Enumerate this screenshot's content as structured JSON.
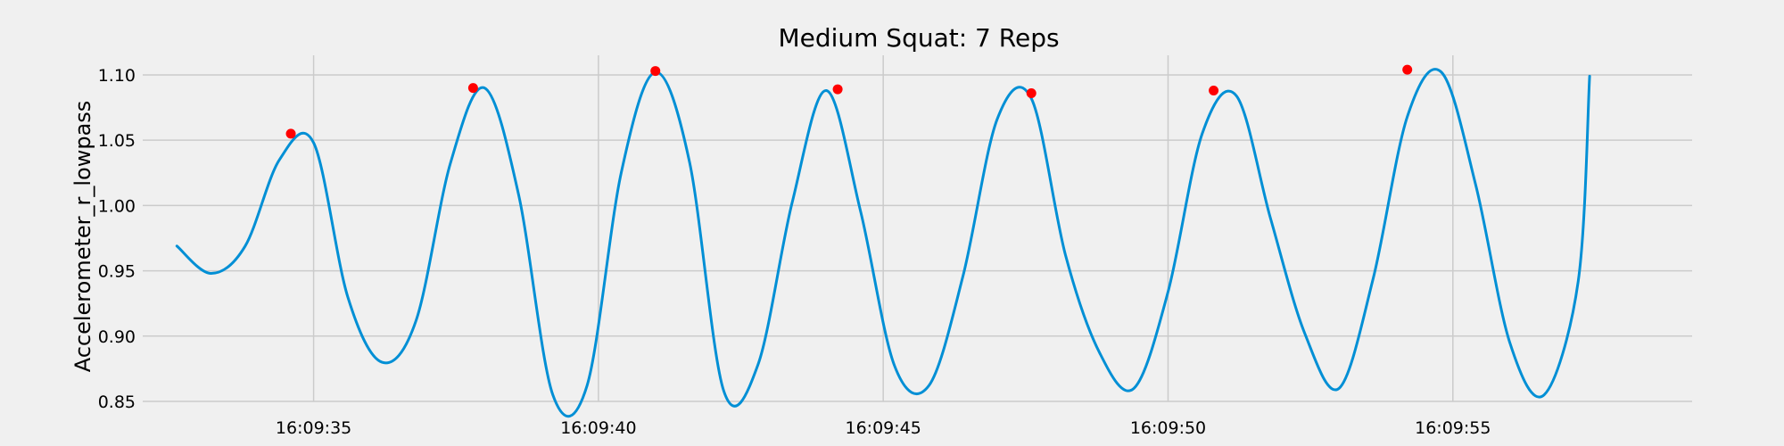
{
  "chart_data": {
    "type": "line",
    "title": "Medium Squat: 7 Reps",
    "xlabel": "",
    "ylabel": "Accelerometer_r_lowpass",
    "xlim": [
      "16:09:32.0",
      "16:09:59.2"
    ],
    "ylim": [
      0.85,
      1.115
    ],
    "grid": true,
    "xticks": [
      "16:09:35",
      "16:09:40",
      "16:09:45",
      "16:09:50",
      "16:09:55"
    ],
    "yticks": [
      "0.85",
      "0.90",
      "0.95",
      "1.00",
      "1.05",
      "1.10"
    ],
    "series": [
      {
        "color": "#008fd5",
        "x": [
          "16:09:32.6",
          "16:09:33.2",
          "16:09:33.8",
          "16:09:34.4",
          "16:09:35.0",
          "16:09:35.6",
          "16:09:36.2",
          "16:09:36.8",
          "16:09:37.4",
          "16:09:38.0",
          "16:09:38.6",
          "16:09:39.2",
          "16:09:39.8",
          "16:09:40.4",
          "16:09:41.0",
          "16:09:41.6",
          "16:09:42.2",
          "16:09:42.8",
          "16:09:43.4",
          "16:09:44.0",
          "16:09:44.6",
          "16:09:45.2",
          "16:09:45.8",
          "16:09:46.4",
          "16:09:47.0",
          "16:09:47.6",
          "16:09:48.2",
          "16:09:48.8",
          "16:09:49.4",
          "16:09:50.0",
          "16:09:50.6",
          "16:09:51.2",
          "16:09:51.8",
          "16:09:52.4",
          "16:09:53.0",
          "16:09:53.6",
          "16:09:54.2",
          "16:09:54.8",
          "16:09:55.4",
          "16:09:56.0",
          "16:09:56.6",
          "16:09:57.2",
          "16:09:57.4"
        ],
        "values": [
          0.969,
          0.948,
          0.969,
          1.035,
          1.048,
          0.93,
          0.88,
          0.912,
          1.032,
          1.09,
          1.008,
          0.855,
          0.862,
          1.025,
          1.102,
          1.033,
          0.858,
          0.878,
          1.002,
          1.088,
          0.996,
          0.877,
          0.862,
          0.946,
          1.066,
          1.082,
          0.962,
          0.887,
          0.86,
          0.934,
          1.055,
          1.084,
          0.99,
          0.902,
          0.86,
          0.944,
          1.068,
          1.102,
          1.016,
          0.895,
          0.855,
          0.942,
          1.099
        ]
      }
    ],
    "peaks": {
      "color": "#ff0000",
      "x": [
        "16:09:34.6",
        "16:09:37.8",
        "16:09:41.0",
        "16:09:44.2",
        "16:09:47.6",
        "16:09:50.8",
        "16:09:54.2"
      ],
      "values": [
        1.055,
        1.09,
        1.103,
        1.089,
        1.086,
        1.088,
        1.104
      ]
    }
  }
}
